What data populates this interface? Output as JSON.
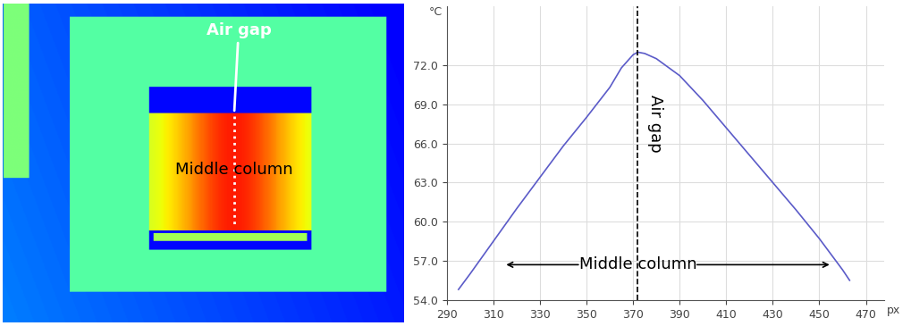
{
  "thermal_image": {
    "annotations": [
      "Air gap",
      "Middle column"
    ]
  },
  "chart_data": {
    "type": "line",
    "x_label": "px",
    "y_label": "°C",
    "x": [
      295,
      300,
      310,
      320,
      330,
      340,
      350,
      360,
      365,
      370,
      372,
      375,
      380,
      390,
      400,
      410,
      420,
      430,
      440,
      450,
      460,
      463
    ],
    "values": [
      54.8,
      56.0,
      58.5,
      61.0,
      63.4,
      65.8,
      68.0,
      70.3,
      71.8,
      72.8,
      73.0,
      72.9,
      72.5,
      71.2,
      69.3,
      67.2,
      65.1,
      63.0,
      60.9,
      58.7,
      56.3,
      55.5
    ],
    "color": "#5b5bc8",
    "xlim": [
      290,
      478
    ],
    "ylim": [
      54,
      76.5
    ],
    "xticks": [
      290,
      310,
      330,
      350,
      370,
      390,
      410,
      430,
      450,
      470
    ],
    "yticks": [
      {
        "value": 54,
        "label": "54.0"
      },
      {
        "value": 57,
        "label": "57.0"
      },
      {
        "value": 60,
        "label": "60.0"
      },
      {
        "value": 63,
        "label": "63.0"
      },
      {
        "value": 66,
        "label": "66.0"
      },
      {
        "value": 69,
        "label": "69.0"
      },
      {
        "value": 72,
        "label": "72.0"
      }
    ],
    "grid": true,
    "annotations": [
      {
        "text": "Air gap",
        "x": 372
      },
      {
        "text": "Middle column"
      }
    ]
  }
}
